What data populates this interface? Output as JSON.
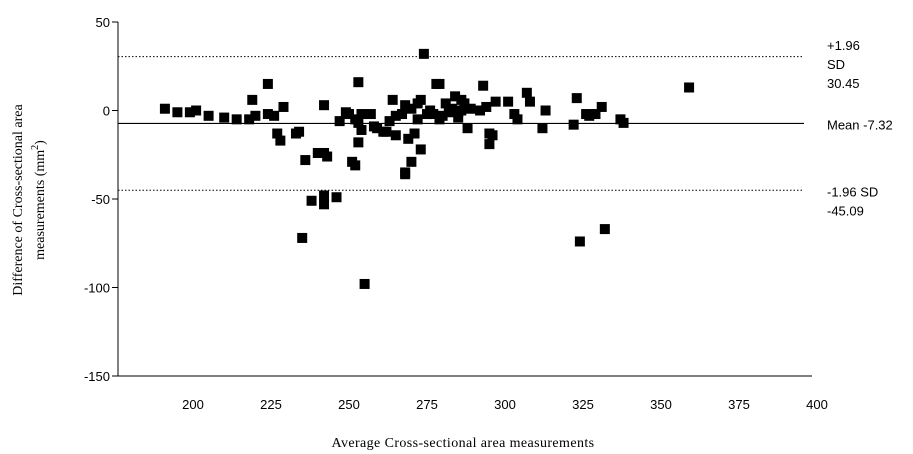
{
  "chart_data": {
    "type": "scatter",
    "xlabel": "Average Cross-sectional area measurements",
    "ylabel_line1": "Difference of Cross-sectional area",
    "ylabel_line2_main": "measurements (mm",
    "ylabel_line2_sup": "2",
    "ylabel_line2_end": ")",
    "xlim": [
      175,
      400
    ],
    "ylim": [
      -150,
      50
    ],
    "x_ticks": [
      200,
      225,
      250,
      275,
      300,
      325,
      350,
      375,
      400
    ],
    "y_ticks": [
      50,
      0,
      -50,
      -100,
      -150
    ],
    "grid": false,
    "reference_lines": [
      {
        "value": 30.45,
        "style": "dotted",
        "label_lines": [
          "+1.96",
          "SD",
          "30.45"
        ]
      },
      {
        "value": -7.32,
        "style": "solid",
        "label_lines": [
          "Mean -7.32"
        ]
      },
      {
        "value": -45.09,
        "style": "dotted",
        "label_lines": [
          "-1.96 SD",
          "-45.09"
        ]
      }
    ],
    "points": [
      [
        191,
        1
      ],
      [
        195,
        -1
      ],
      [
        199,
        -1
      ],
      [
        201,
        0
      ],
      [
        205,
        -3
      ],
      [
        210,
        -4
      ],
      [
        214,
        -5
      ],
      [
        218,
        -5
      ],
      [
        219,
        6
      ],
      [
        220,
        -3
      ],
      [
        224,
        -2
      ],
      [
        224,
        15
      ],
      [
        226,
        -3
      ],
      [
        227,
        -13
      ],
      [
        228,
        -17
      ],
      [
        229,
        2
      ],
      [
        233,
        -13
      ],
      [
        234,
        -12
      ],
      [
        235,
        -72
      ],
      [
        236,
        -28
      ],
      [
        238,
        -51
      ],
      [
        240,
        -24
      ],
      [
        242,
        -24
      ],
      [
        242,
        3
      ],
      [
        243,
        -26
      ],
      [
        242,
        -48
      ],
      [
        242,
        -53
      ],
      [
        246,
        -49
      ],
      [
        247,
        -6
      ],
      [
        249,
        -1
      ],
      [
        250,
        -2
      ],
      [
        251,
        -29
      ],
      [
        252,
        -31
      ],
      [
        252,
        -5
      ],
      [
        253,
        -7
      ],
      [
        253,
        16
      ],
      [
        253,
        -18
      ],
      [
        254,
        -2
      ],
      [
        254,
        -11
      ],
      [
        255,
        -98
      ],
      [
        257,
        -2
      ],
      [
        258,
        -9
      ],
      [
        259,
        -10
      ],
      [
        261,
        -12
      ],
      [
        262,
        -12
      ],
      [
        263,
        -6
      ],
      [
        264,
        6
      ],
      [
        265,
        -14
      ],
      [
        265,
        -3
      ],
      [
        267,
        -2
      ],
      [
        268,
        -36
      ],
      [
        268,
        -35
      ],
      [
        268,
        3
      ],
      [
        269,
        -16
      ],
      [
        270,
        -29
      ],
      [
        270,
        1
      ],
      [
        271,
        -13
      ],
      [
        272,
        -5
      ],
      [
        272,
        4
      ],
      [
        273,
        -22
      ],
      [
        273,
        6
      ],
      [
        274,
        32
      ],
      [
        275,
        -2
      ],
      [
        276,
        0
      ],
      [
        277,
        -2
      ],
      [
        278,
        15
      ],
      [
        279,
        15
      ],
      [
        279,
        -5
      ],
      [
        280,
        -3
      ],
      [
        281,
        4
      ],
      [
        282,
        -1
      ],
      [
        283,
        1
      ],
      [
        284,
        8
      ],
      [
        285,
        -4
      ],
      [
        285,
        -1
      ],
      [
        286,
        0
      ],
      [
        286,
        6
      ],
      [
        287,
        4
      ],
      [
        288,
        -10
      ],
      [
        289,
        1
      ],
      [
        292,
        0
      ],
      [
        293,
        14
      ],
      [
        294,
        2
      ],
      [
        295,
        -13
      ],
      [
        295,
        -19
      ],
      [
        296,
        -14
      ],
      [
        297,
        5
      ],
      [
        301,
        5
      ],
      [
        303,
        -2
      ],
      [
        304,
        -5
      ],
      [
        307,
        10
      ],
      [
        308,
        5
      ],
      [
        312,
        -10
      ],
      [
        313,
        0
      ],
      [
        322,
        -8
      ],
      [
        323,
        7
      ],
      [
        324,
        -74
      ],
      [
        326,
        -2
      ],
      [
        327,
        -3
      ],
      [
        329,
        -2
      ],
      [
        331,
        2
      ],
      [
        332,
        -67
      ],
      [
        337,
        -5
      ],
      [
        338,
        -7
      ],
      [
        359,
        13
      ]
    ]
  }
}
